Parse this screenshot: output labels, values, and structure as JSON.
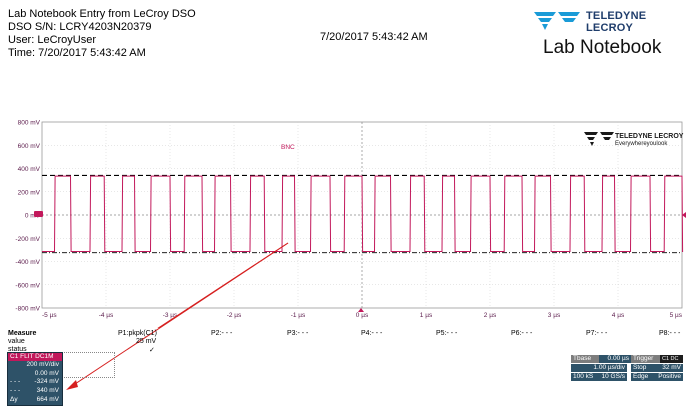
{
  "header": {
    "title": "Lab Notebook Entry from LeCroy DSO",
    "serial": "DSO S/N: LCRY4203N20379",
    "user": "User: LeCroyUser",
    "time": "Time: 7/20/2017 5:43:42 AM",
    "timestamp": "7/20/2017 5:43:42 AM",
    "logo_text": "TELEDYNE LECROY",
    "lab_title": "Lab Notebook"
  },
  "scope": {
    "y_labels": [
      "800 mV",
      "600 mV",
      "400 mV",
      "200 mV",
      "0 mV",
      "-200 mV",
      "-400 mV",
      "-600 mV",
      "-800 mV"
    ],
    "x_labels": [
      "-5 µs",
      "-4 µs",
      "-3 µs",
      "-2 µs",
      "-1 µs",
      "0 µs",
      "1 µs",
      "2 µs",
      "3 µs",
      "4 µs",
      "5 µs"
    ],
    "bnc_label": "BNC",
    "logo_company": "TELEDYNE LECROY",
    "logo_tagline": "Everywhereyoulook",
    "channel_marker": "1",
    "trace_color": "#c2185b",
    "cursor_high_mv": 340,
    "cursor_low_mv": -324
  },
  "chart_data": {
    "type": "line",
    "xlabel": "",
    "ylabel": "",
    "xlim": [
      -5,
      5
    ],
    "ylim": [
      -800,
      800
    ],
    "grid": true,
    "series": [
      {
        "high_mv": 340,
        "low_mv": -324
      }
    ]
  },
  "measure": {
    "label": "Measure",
    "rows": [
      "value",
      "status"
    ],
    "p1": {
      "name": "P1:pkpk(C1)",
      "value": "25 mV",
      "status": "✓"
    },
    "params": [
      "P2:- - -",
      "P3:- - -",
      "P4:- - -",
      "P5:- - -",
      "P6:- - -",
      "P7:- - -",
      "P8:- - -"
    ]
  },
  "c1": {
    "header": "C1  FLIT DC1M",
    "vdiv": "200 mV/div",
    "offset": "0.00 mV",
    "cur1": "-324 mV",
    "cur2": "340 mV",
    "delta_label": "Δy",
    "delta": "664 mV",
    "cur1_marker": "- - -",
    "cur2_marker": "- - -"
  },
  "timebase": {
    "tbase_label": "Tbase",
    "tbase_val": "0.00 µs",
    "trigger_label": "Trigger",
    "trigger_badge": "C1 DC",
    "div": "1.00 µs/div",
    "stop": "Stop",
    "level": "32 mV",
    "samples": "100 kS",
    "rate": "10 GS/s",
    "edge": "Edge",
    "slope": "Positive"
  }
}
